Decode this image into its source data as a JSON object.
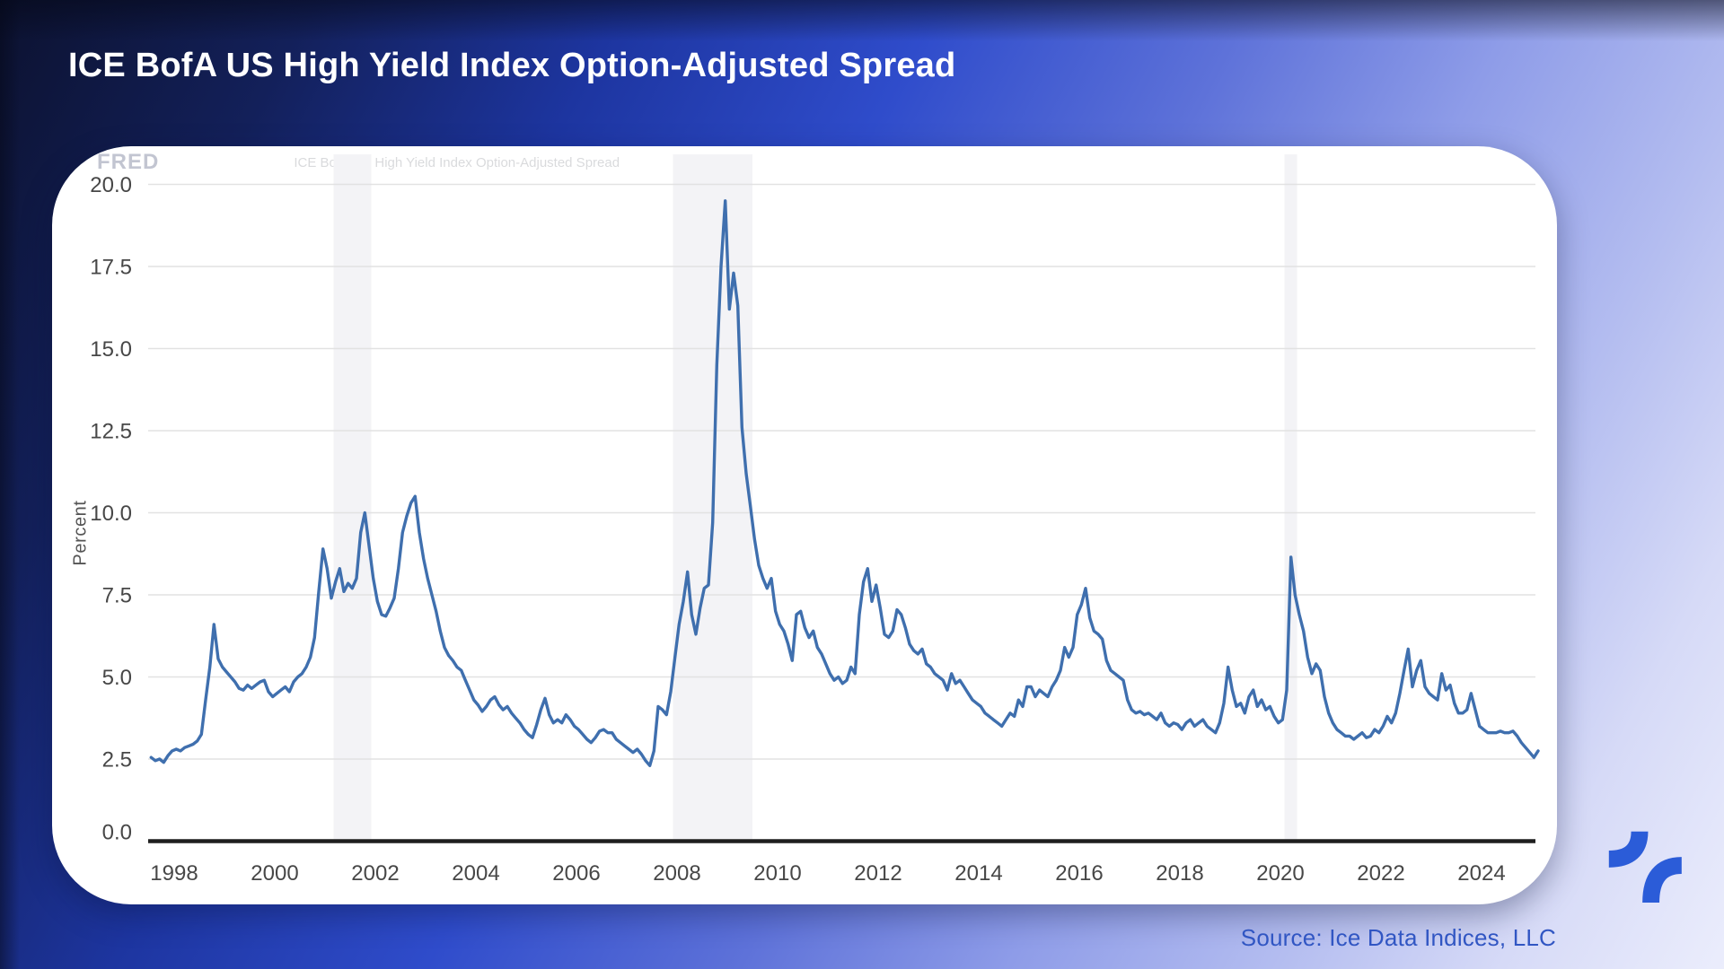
{
  "header": {
    "title": "ICE BofA US High Yield Index Option-Adjusted Spread"
  },
  "footer": {
    "source": "Source: Ice Data Indices, LLC"
  },
  "watermark": {
    "logo": "FRED",
    "title": "ICE BofA US High Yield Index Option-Adjusted Spread"
  },
  "icons": {
    "brand_logo": "two-curved-strokes-pinwheel"
  },
  "colors": {
    "line": "#3f6fae",
    "grid": "#e2e2e2",
    "axis_line": "#1f1f1f",
    "tick_text": "#474747",
    "recession_band": "#f3f3f6",
    "source_text": "#3156c3",
    "logo_blue": "#2b5cd8",
    "card_bg": "#ffffff",
    "title_text": "#ffffff"
  },
  "chart_data": {
    "type": "line",
    "title": "ICE BofA US High Yield Index Option-Adjusted Spread",
    "xlabel": "",
    "ylabel": "Percent",
    "ylim": [
      0,
      20
    ],
    "yticks": [
      0,
      2.5,
      5,
      7.5,
      10,
      12.5,
      15,
      17.5,
      20
    ],
    "ytick_labels": [
      "0.0",
      "2.5",
      "5.0",
      "7.5",
      "10.0",
      "12.5",
      "15.0",
      "17.5",
      "20.0"
    ],
    "xticks": [
      1998,
      2000,
      2002,
      2004,
      2006,
      2008,
      2010,
      2012,
      2014,
      2016,
      2018,
      2020,
      2022,
      2024
    ],
    "grid": true,
    "legend_position": "none",
    "recession_bands": [
      [
        2001.17,
        2001.92
      ],
      [
        2007.92,
        2009.5
      ],
      [
        2020.08,
        2020.33
      ]
    ],
    "series": [
      {
        "name": "ICE BofA US High Yield Index Option-Adjusted Spread",
        "unit": "Percent",
        "frequency": "monthly",
        "start_year": 1997,
        "start_month": 7,
        "values": [
          2.55,
          2.45,
          2.5,
          2.4,
          2.6,
          2.75,
          2.8,
          2.75,
          2.85,
          2.9,
          2.95,
          3.05,
          3.25,
          4.3,
          5.3,
          6.6,
          5.55,
          5.3,
          5.15,
          5.0,
          4.85,
          4.65,
          4.6,
          4.75,
          4.65,
          4.75,
          4.85,
          4.9,
          4.55,
          4.4,
          4.5,
          4.6,
          4.7,
          4.55,
          4.85,
          5.0,
          5.1,
          5.3,
          5.6,
          6.2,
          7.6,
          8.9,
          8.3,
          7.4,
          7.9,
          8.3,
          7.6,
          7.85,
          7.7,
          8.0,
          9.4,
          10.0,
          9.0,
          8.0,
          7.3,
          6.9,
          6.85,
          7.1,
          7.4,
          8.3,
          9.4,
          9.9,
          10.3,
          10.5,
          9.4,
          8.6,
          8.0,
          7.5,
          7.0,
          6.4,
          5.9,
          5.65,
          5.5,
          5.3,
          5.2,
          4.9,
          4.6,
          4.3,
          4.15,
          3.95,
          4.1,
          4.3,
          4.4,
          4.15,
          4.0,
          4.1,
          3.9,
          3.75,
          3.6,
          3.4,
          3.25,
          3.15,
          3.55,
          4.0,
          4.35,
          3.85,
          3.6,
          3.7,
          3.6,
          3.85,
          3.7,
          3.5,
          3.4,
          3.25,
          3.1,
          3.0,
          3.15,
          3.35,
          3.4,
          3.3,
          3.3,
          3.1,
          3.0,
          2.9,
          2.8,
          2.7,
          2.8,
          2.65,
          2.45,
          2.3,
          2.75,
          4.1,
          4.0,
          3.85,
          4.55,
          5.6,
          6.6,
          7.3,
          8.2,
          6.9,
          6.3,
          7.1,
          7.7,
          7.8,
          9.7,
          14.5,
          17.5,
          19.5,
          16.2,
          17.3,
          16.3,
          12.6,
          11.2,
          10.2,
          9.2,
          8.4,
          8.0,
          7.7,
          8.0,
          7.0,
          6.6,
          6.4,
          6.0,
          5.5,
          6.9,
          7.0,
          6.5,
          6.2,
          6.4,
          5.9,
          5.7,
          5.4,
          5.1,
          4.9,
          5.0,
          4.8,
          4.9,
          5.3,
          5.1,
          6.9,
          7.9,
          8.3,
          7.3,
          7.8,
          7.1,
          6.3,
          6.2,
          6.4,
          7.05,
          6.9,
          6.5,
          6.0,
          5.8,
          5.7,
          5.85,
          5.4,
          5.3,
          5.1,
          5.0,
          4.9,
          4.6,
          5.1,
          4.8,
          4.9,
          4.7,
          4.5,
          4.3,
          4.2,
          4.1,
          3.9,
          3.8,
          3.7,
          3.6,
          3.5,
          3.7,
          3.9,
          3.8,
          4.3,
          4.1,
          4.7,
          4.7,
          4.4,
          4.6,
          4.5,
          4.4,
          4.7,
          4.9,
          5.2,
          5.9,
          5.6,
          5.9,
          6.9,
          7.2,
          7.7,
          6.8,
          6.4,
          6.3,
          6.15,
          5.5,
          5.2,
          5.1,
          5.0,
          4.9,
          4.3,
          4.0,
          3.9,
          3.95,
          3.85,
          3.9,
          3.8,
          3.7,
          3.9,
          3.6,
          3.5,
          3.6,
          3.55,
          3.4,
          3.6,
          3.7,
          3.5,
          3.6,
          3.7,
          3.5,
          3.4,
          3.3,
          3.6,
          4.2,
          5.3,
          4.6,
          4.1,
          4.2,
          3.9,
          4.4,
          4.6,
          4.1,
          4.3,
          4.0,
          4.1,
          3.8,
          3.6,
          3.7,
          4.6,
          8.65,
          7.5,
          6.9,
          6.4,
          5.6,
          5.1,
          5.4,
          5.2,
          4.4,
          3.9,
          3.6,
          3.4,
          3.3,
          3.2,
          3.2,
          3.1,
          3.2,
          3.3,
          3.15,
          3.2,
          3.4,
          3.3,
          3.5,
          3.8,
          3.6,
          3.9,
          4.5,
          5.2,
          5.85,
          4.7,
          5.2,
          5.5,
          4.7,
          4.5,
          4.4,
          4.3,
          5.1,
          4.6,
          4.75,
          4.2,
          3.9,
          3.9,
          4.0,
          4.5,
          4.0,
          3.5,
          3.4,
          3.3,
          3.3,
          3.3,
          3.35,
          3.3,
          3.3,
          3.35,
          3.2,
          3.0,
          2.85,
          2.7,
          2.55,
          2.75
        ]
      }
    ]
  }
}
